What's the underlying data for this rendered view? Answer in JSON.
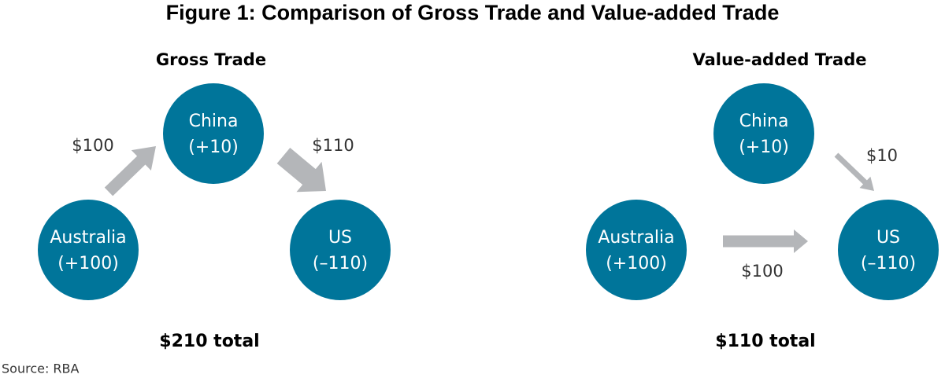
{
  "title": "Figure 1: Comparison of Gross Trade and Value-added Trade",
  "panels": [
    {
      "title": "Gross Trade",
      "nodes": [
        {
          "label": "China",
          "value": "(+10)"
        },
        {
          "label": "Australia",
          "value": "(+100)"
        },
        {
          "label": "US",
          "value": "(–110)"
        }
      ],
      "edges": [
        {
          "label": "$100"
        },
        {
          "label": "$110"
        }
      ],
      "total": "$210 total"
    },
    {
      "title": "Value-added Trade",
      "nodes": [
        {
          "label": "China",
          "value": "(+10)"
        },
        {
          "label": "Australia",
          "value": "(+100)"
        },
        {
          "label": "US",
          "value": "(–110)"
        }
      ],
      "edges": [
        {
          "label": "$10"
        },
        {
          "label": "$100"
        }
      ],
      "total": "$110 total"
    }
  ],
  "source": "Source: RBA"
}
